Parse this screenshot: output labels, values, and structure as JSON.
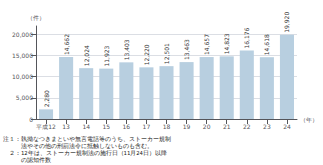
{
  "chart_data": {
    "type": "bar",
    "categories": [
      "平成12",
      "13",
      "14",
      "15",
      "16",
      "17",
      "18",
      "19",
      "20",
      "21",
      "22",
      "23",
      "24"
    ],
    "values": [
      2280,
      14662,
      12024,
      11923,
      13403,
      12220,
      12501,
      13463,
      14657,
      14823,
      16176,
      14618,
      19920
    ],
    "value_labels": [
      "2,280",
      "14,662",
      "12,024",
      "11,923",
      "13,403",
      "12,220",
      "12,501",
      "13,463",
      "14,657",
      "14,823",
      "16,176",
      "14,618",
      "19,920"
    ],
    "data_labels": true,
    "color": "#b8cfe0",
    "ylabel": "（件）",
    "xlabel": "（年）",
    "ylim": [
      0,
      22000
    ],
    "yticks": [
      0,
      {
        "value": 5000,
        "label": "5,000"
      },
      {
        "value": 10000,
        "label": "10,000"
      },
      {
        "value": 15000,
        "label": "15,000"
      },
      {
        "value": 20000,
        "label": "20,000"
      }
    ],
    "grid": true,
    "annotations": [
      "注１：執拗なつきまといや無言電話等のうち、ストーカー規制",
      "　　　法やその他の刑罰法令に抵触しないものも含む。",
      "　２：12年は、ストーカー規制法の施行日（11月24日）以降",
      "　　　の認知件数"
    ]
  }
}
